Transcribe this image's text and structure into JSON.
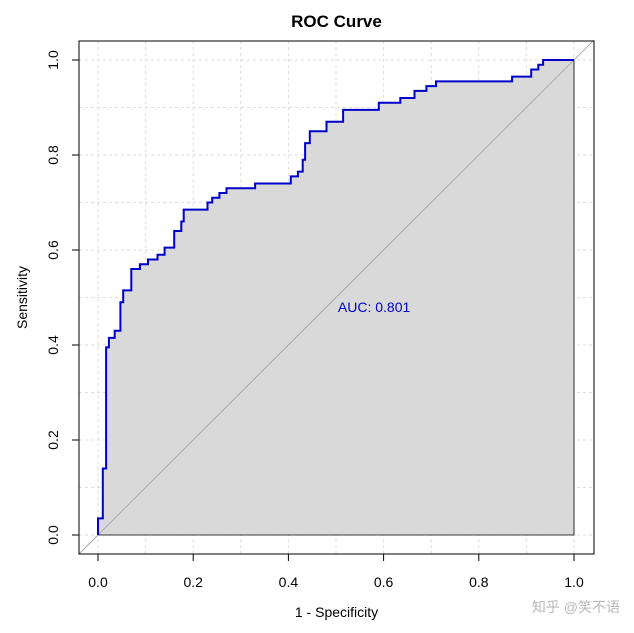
{
  "chart_data": {
    "type": "line",
    "title": "ROC Curve",
    "xlabel": "1 - Specificity",
    "ylabel": "Sensitivity",
    "xlim": [
      0,
      1
    ],
    "ylim": [
      0,
      1
    ],
    "x_ticks": [
      "0.0",
      "0.2",
      "0.4",
      "0.6",
      "0.8",
      "1.0"
    ],
    "y_ticks": [
      "0.0",
      "0.2",
      "0.4",
      "0.6",
      "0.8",
      "1.0"
    ],
    "grid": true,
    "annotation": "AUC: 0.801",
    "annotation_at": [
      0.58,
      0.48
    ],
    "curve_color": "#0000cc",
    "fill_color": "#d9d9d9",
    "diagonal_color": "#aaaaaa",
    "series": [
      {
        "x": [
          0,
          0,
          0.01,
          0.01,
          0.017,
          0.017,
          0.023,
          0.023,
          0.035,
          0.035,
          0.047,
          0.047,
          0.053,
          0.053,
          0.07,
          0.07,
          0.077,
          0.077,
          0.088,
          0.088,
          0.105,
          0.105,
          0.125,
          0.125,
          0.14,
          0.14,
          0.16,
          0.16,
          0.175,
          0.175,
          0.18,
          0.18,
          0.23,
          0.23,
          0.24,
          0.24,
          0.255,
          0.255,
          0.27,
          0.27,
          0.33,
          0.33,
          0.405,
          0.405,
          0.42,
          0.42,
          0.43,
          0.43,
          0.435,
          0.435,
          0.445,
          0.445,
          0.48,
          0.48,
          0.515,
          0.515,
          0.59,
          0.59,
          0.635,
          0.635,
          0.665,
          0.665,
          0.69,
          0.69,
          0.71,
          0.71,
          0.87,
          0.87,
          0.91,
          0.91,
          0.925,
          0.925,
          0.935,
          0.935,
          1.0
        ],
        "y": [
          0,
          0.035,
          0.035,
          0.14,
          0.14,
          0.395,
          0.395,
          0.415,
          0.415,
          0.43,
          0.43,
          0.49,
          0.49,
          0.515,
          0.515,
          0.56,
          0.56,
          0.56,
          0.56,
          0.57,
          0.57,
          0.58,
          0.58,
          0.59,
          0.59,
          0.605,
          0.605,
          0.64,
          0.64,
          0.66,
          0.66,
          0.685,
          0.685,
          0.7,
          0.7,
          0.71,
          0.71,
          0.72,
          0.72,
          0.73,
          0.73,
          0.74,
          0.74,
          0.755,
          0.755,
          0.765,
          0.765,
          0.79,
          0.79,
          0.825,
          0.825,
          0.85,
          0.85,
          0.87,
          0.87,
          0.895,
          0.895,
          0.91,
          0.91,
          0.92,
          0.92,
          0.935,
          0.935,
          0.945,
          0.945,
          0.955,
          0.955,
          0.965,
          0.965,
          0.98,
          0.98,
          0.99,
          0.99,
          1.0,
          1.0
        ]
      }
    ]
  },
  "watermark": "知乎 @笑不语"
}
